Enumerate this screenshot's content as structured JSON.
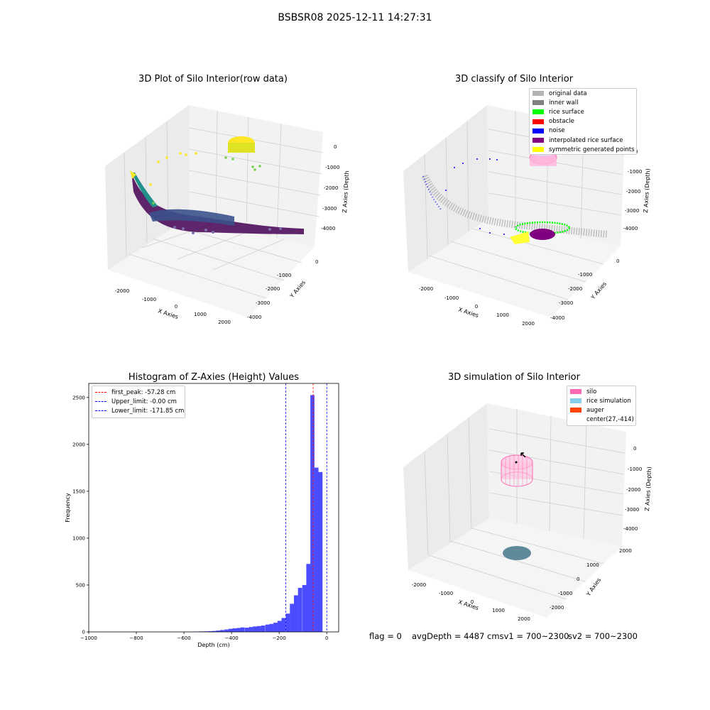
{
  "figure": {
    "suptitle": "BSBSR08 2025-12-11 14:27:31",
    "status": {
      "flag": "flag = 0",
      "avg": "avgDepth = 4487 cmsv1 = 700~2300",
      "sv2": "sv2 = 700~2300"
    }
  },
  "axes3d_common": {
    "xlabel": "X Axies",
    "ylabel": "Y Axies",
    "zlabel": "Z Axies (Depth)",
    "xticks": [
      "-2000",
      "-1000",
      "0",
      "1000",
      "2000"
    ],
    "yticks_top": [
      "0",
      "-1000",
      "-2000",
      "-3000",
      "-4000"
    ],
    "zticks": [
      "0",
      "-1000",
      "-2000",
      "-3000",
      "-4000"
    ],
    "yticks_sim": [
      "2000",
      "1000",
      "0",
      "-1000",
      "-2000"
    ]
  },
  "panels": {
    "raw": {
      "title": "3D Plot of Silo Interior(row data)",
      "zlabel": "Z Axies (Depth"
    },
    "classify": {
      "title": "3D classify of Silo Interior"
    },
    "histogram": {
      "title": "Histogram of Z-Axies (Height) Values"
    },
    "simulation": {
      "title": "3D simulation of Silo Interior"
    }
  },
  "legend_classify": [
    {
      "label": "original data",
      "color": "#b3b3b3"
    },
    {
      "label": "inner wall",
      "color": "#808080"
    },
    {
      "label": "rice surface",
      "color": "#00ff00"
    },
    {
      "label": "obstacle",
      "color": "#ff0000"
    },
    {
      "label": "noise",
      "color": "#0000ff"
    },
    {
      "label": "interpolated rice surface",
      "color": "#800080"
    },
    {
      "label": "symmetric generated points",
      "color": "#ffff00"
    }
  ],
  "legend_sim": [
    {
      "label": "silo",
      "color": "#ff69b4"
    },
    {
      "label": "rice simulation",
      "color": "#87ceeb"
    },
    {
      "label": "auger",
      "color": "#ff4500"
    },
    {
      "label": "center(27,-414)",
      "color": "#ffffff"
    }
  ],
  "chart_data": {
    "type": "bar",
    "title": "Histogram of Z-Axies (Height) Values",
    "xlabel": "Depth (cm)",
    "ylabel": "Frequency",
    "xlim": [
      -1000,
      50
    ],
    "ylim": [
      0,
      2650
    ],
    "xticks": [
      -1000,
      -800,
      -600,
      -400,
      -200,
      0
    ],
    "yticks": [
      0,
      500,
      1000,
      1500,
      2000,
      2500
    ],
    "bin_width": 17.2,
    "series": [
      {
        "bar_color": "#0000ff",
        "bins_left": [
          -568,
          -551,
          -534,
          -516,
          -499,
          -482,
          -465,
          -448,
          -430,
          -413,
          -396,
          -379,
          -362,
          -344,
          -327,
          -310,
          -293,
          -276,
          -258,
          -241,
          -224,
          -207,
          -190,
          -172,
          -155,
          -138,
          -121,
          -103,
          -86,
          -69,
          -52,
          -35,
          -17
        ],
        "values": [
          3,
          4,
          5,
          6,
          8,
          10,
          14,
          20,
          26,
          33,
          38,
          42,
          48,
          45,
          52,
          58,
          62,
          68,
          78,
          85,
          98,
          118,
          148,
          195,
          300,
          390,
          470,
          500,
          725,
          2525,
          1752,
          1705,
          0
        ]
      }
    ],
    "vlines": [
      {
        "label": "first_peak: -57.28 cm",
        "x": -57.28,
        "color": "#ff0000"
      },
      {
        "label": "Upper_limit: -0.00 cm",
        "x": -0.0,
        "color": "#0000ff"
      },
      {
        "label": "Lower_limit: -171.85 cm",
        "x": -171.85,
        "color": "#0000ff"
      }
    ],
    "grid": false,
    "legend_placement": "top-left"
  }
}
